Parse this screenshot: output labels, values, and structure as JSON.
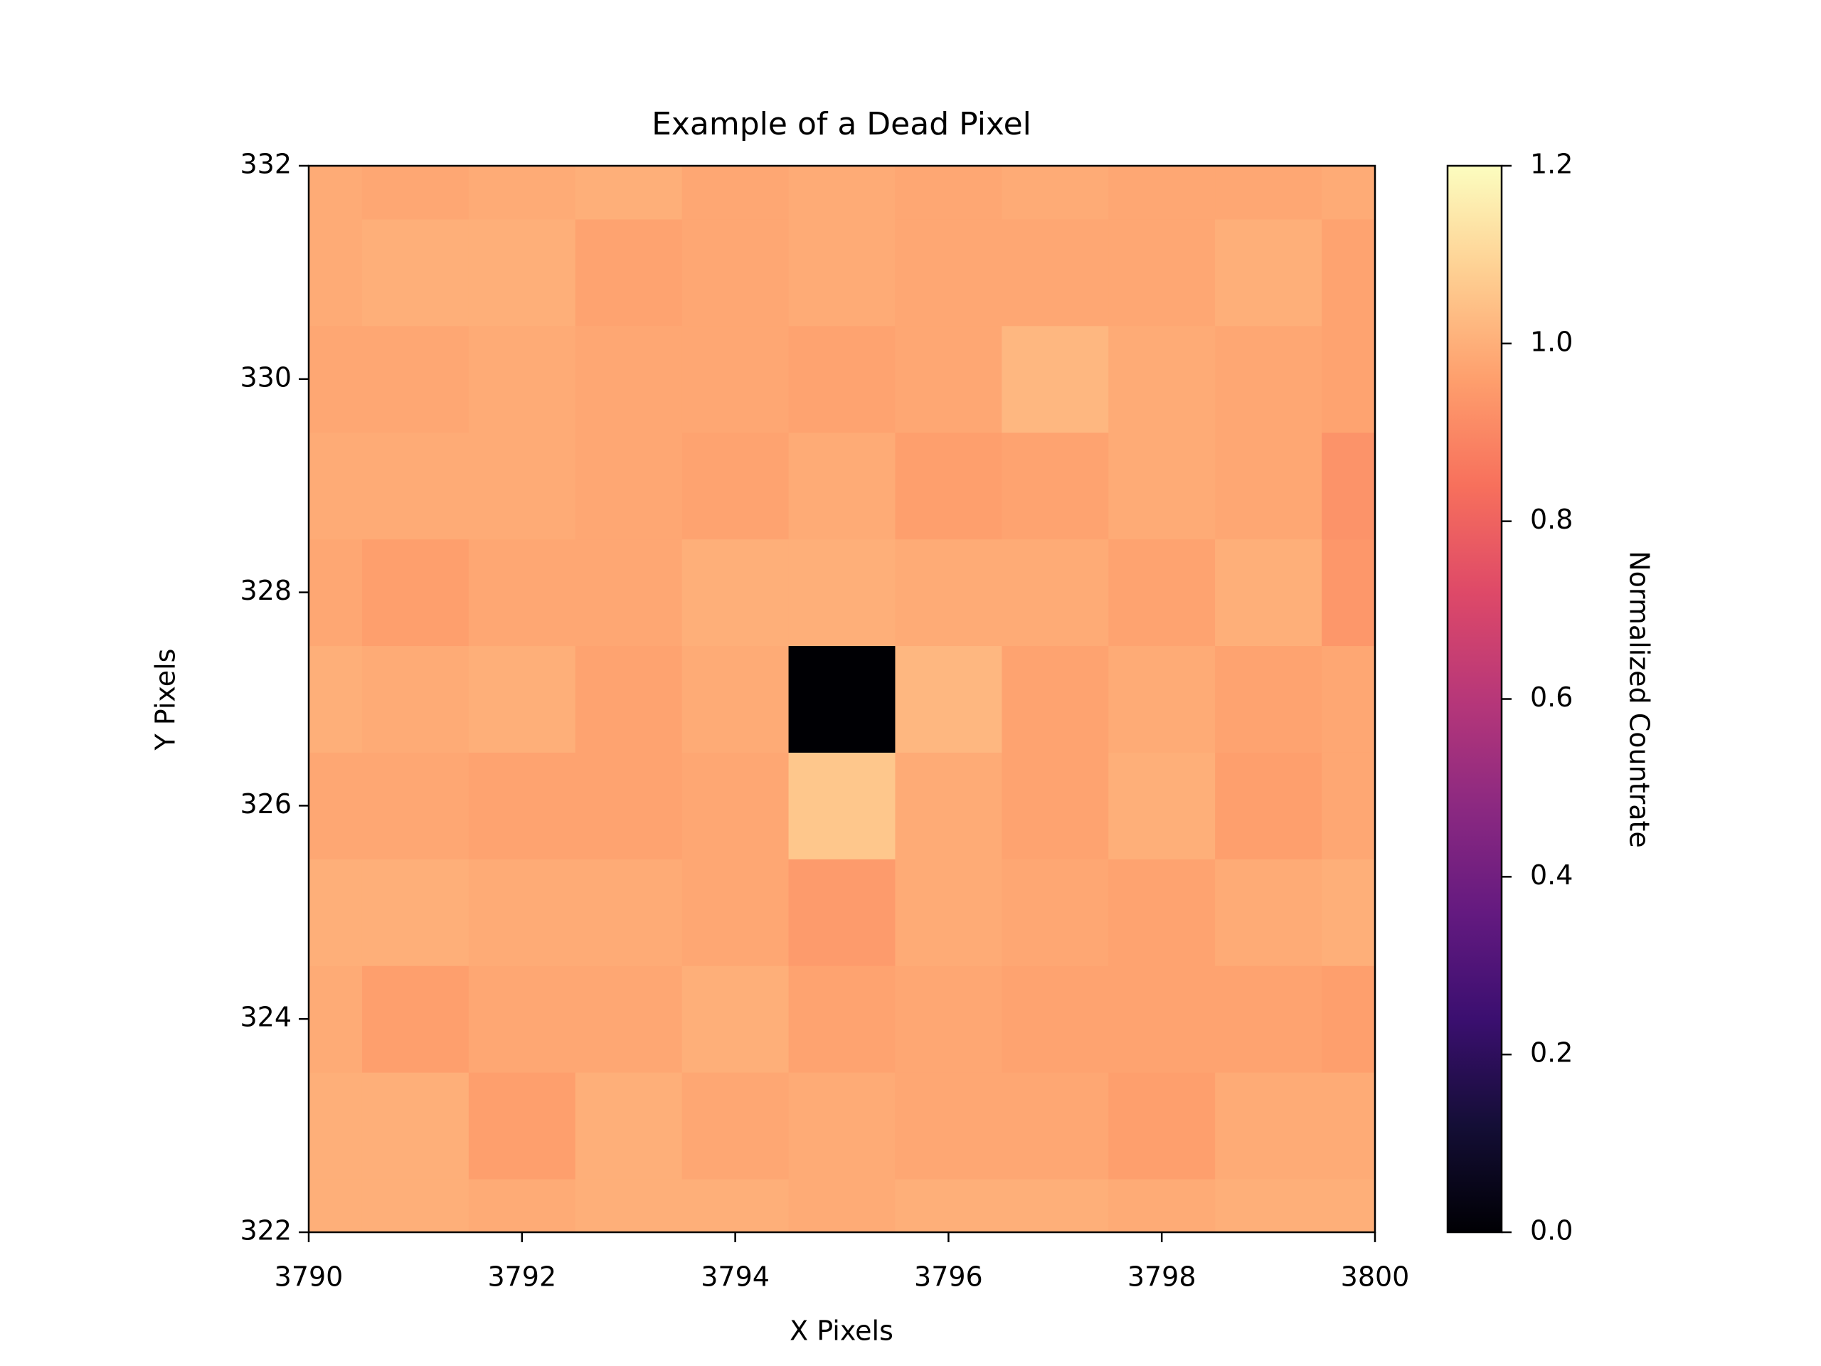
{
  "chart_data": {
    "type": "heatmap",
    "title": "Example of a Dead Pixel",
    "x_label": "X Pixels",
    "y_label": "Y Pixels",
    "colorbar_label": "Normalized Countrate",
    "colormap": "magma",
    "x": [
      3790,
      3791,
      3792,
      3793,
      3794,
      3795,
      3796,
      3797,
      3798,
      3799,
      3800
    ],
    "y": [
      322,
      323,
      324,
      325,
      326,
      327,
      328,
      329,
      330,
      331,
      332
    ],
    "z": [
      [
        1.0,
        1.0,
        0.99,
        1.0,
        1.0,
        0.99,
        1.0,
        1.0,
        0.99,
        1.0,
        1.0
      ],
      [
        1.0,
        1.0,
        0.96,
        1.0,
        0.98,
        0.99,
        0.98,
        0.98,
        0.96,
        0.99,
        0.99
      ],
      [
        0.99,
        0.96,
        0.98,
        0.98,
        1.0,
        0.97,
        0.98,
        0.97,
        0.97,
        0.97,
        0.96
      ],
      [
        1.0,
        1.0,
        0.99,
        0.99,
        0.98,
        0.95,
        0.99,
        0.98,
        0.97,
        0.99,
        1.0
      ],
      [
        0.98,
        0.98,
        0.97,
        0.97,
        0.98,
        1.06,
        0.99,
        0.97,
        1.0,
        0.96,
        0.98
      ],
      [
        1.0,
        0.99,
        1.0,
        0.97,
        0.99,
        0.0,
        1.02,
        0.97,
        0.99,
        0.97,
        0.98
      ],
      [
        0.98,
        0.96,
        0.98,
        0.98,
        1.0,
        1.0,
        0.99,
        0.99,
        0.97,
        1.0,
        0.94
      ],
      [
        0.99,
        0.99,
        0.99,
        0.98,
        0.97,
        0.99,
        0.96,
        0.97,
        0.99,
        0.98,
        0.93
      ],
      [
        0.98,
        0.98,
        0.99,
        0.98,
        0.98,
        0.97,
        0.98,
        1.02,
        0.99,
        0.98,
        0.97
      ],
      [
        0.99,
        1.0,
        1.0,
        0.97,
        0.98,
        0.99,
        0.98,
        0.98,
        0.98,
        1.0,
        0.97
      ],
      [
        0.99,
        0.98,
        0.99,
        1.0,
        0.98,
        0.99,
        0.98,
        0.99,
        0.98,
        0.98,
        0.99
      ]
    ],
    "xlim": [
      3790,
      3800
    ],
    "xticks": [
      3790,
      3792,
      3794,
      3796,
      3798,
      3800
    ],
    "ylim": [
      322,
      332
    ],
    "yticks": [
      322,
      324,
      326,
      328,
      330,
      332
    ],
    "clim": [
      0,
      1.2
    ],
    "cticks": [
      {
        "value": 0,
        "label": "0.0"
      },
      0.2,
      0.4,
      0.6,
      0.8,
      {
        "value": 1,
        "label": "1.0"
      },
      1.2
    ]
  }
}
